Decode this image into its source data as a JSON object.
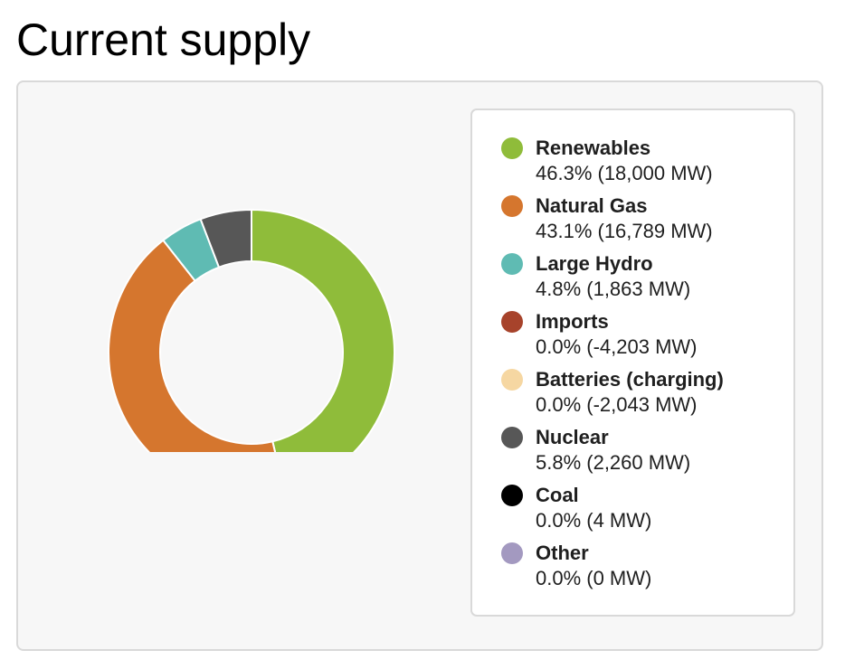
{
  "page": {
    "title": "Current supply"
  },
  "chart_data": {
    "type": "pie",
    "variant": "donut",
    "legend_position": "right",
    "slices": [
      {
        "name": "Renewables",
        "label": "46.3% (18,000 MW)",
        "percent": 46.3,
        "mw": 18000,
        "color": "#8fbc3a"
      },
      {
        "name": "Natural Gas",
        "label": "43.1% (16,789 MW)",
        "percent": 43.1,
        "mw": 16789,
        "color": "#d5762e"
      },
      {
        "name": "Large Hydro",
        "label": "4.8% (1,863 MW)",
        "percent": 4.8,
        "mw": 1863,
        "color": "#5fbbb3"
      },
      {
        "name": "Imports",
        "label": "0.0% (-4,203 MW)",
        "percent": 0.0,
        "mw": -4203,
        "color": "#a7432b"
      },
      {
        "name": "Batteries (charging)",
        "label": "0.0% (-2,043 MW)",
        "percent": 0.0,
        "mw": -2043,
        "color": "#f6d7a2"
      },
      {
        "name": "Nuclear",
        "label": "5.8% (2,260 MW)",
        "percent": 5.8,
        "mw": 2260,
        "color": "#575757"
      },
      {
        "name": "Coal",
        "label": "0.0% (4 MW)",
        "percent": 0.0,
        "mw": 4,
        "color": "#000000"
      },
      {
        "name": "Other",
        "label": "0.0% (0 MW)",
        "percent": 0.0,
        "mw": 0,
        "color": "#a399c0"
      }
    ]
  }
}
